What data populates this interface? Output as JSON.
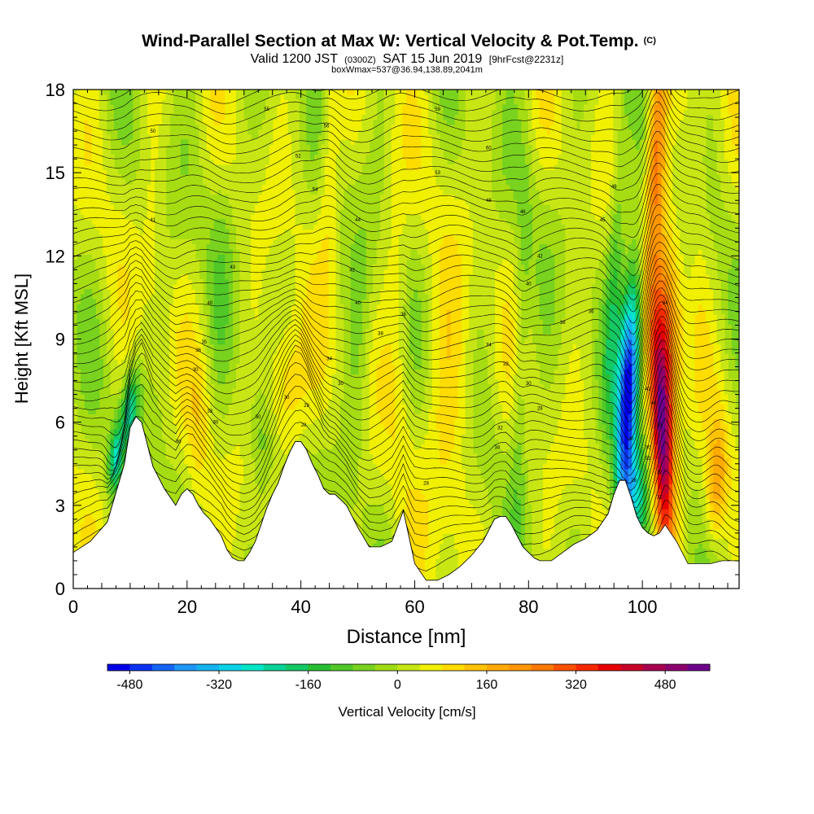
{
  "chart_data": {
    "type": "heatmap",
    "title": "Wind-Parallel Section at Max W: Vertical Velocity & Pot.Temp.",
    "title_mark": "(C)",
    "subtitle": {
      "prefix": "Valid 1200 JST",
      "utc": "(0300Z)",
      "date": "SAT 15 Jun 2019",
      "forecast": "[9hrFcst@2231z]"
    },
    "box_info": "boxWmax=537@36.94,138.89,2041m",
    "xlabel": "Distance [nm]",
    "ylabel": "Height [Kft MSL]",
    "xlim": [
      0,
      117
    ],
    "ylim": [
      0,
      18
    ],
    "x_ticks": [
      0,
      20,
      40,
      60,
      80,
      100
    ],
    "y_ticks": [
      0,
      3,
      6,
      9,
      12,
      15,
      18
    ],
    "grid": false,
    "colorbar": {
      "label": "Vertical Velocity [cm/s]",
      "range": [
        -520,
        560
      ],
      "tick_values": [
        -480,
        -320,
        -160,
        0,
        160,
        320,
        480
      ],
      "tick_labels": [
        "-480",
        "-320",
        "-160",
        "0",
        "160",
        "320",
        "480"
      ],
      "colors": [
        "#0000e6",
        "#0a32f0",
        "#1464f5",
        "#1e96fa",
        "#14b4f0",
        "#0ad2e6",
        "#00e6c8",
        "#0ad296",
        "#14c864",
        "#28be32",
        "#50c828",
        "#78d21e",
        "#a0dc14",
        "#c8e614",
        "#f0f000",
        "#ffdc00",
        "#ffc300",
        "#ffaa00",
        "#ff9600",
        "#ff7800",
        "#ff5000",
        "#f52800",
        "#e60000",
        "#c80028",
        "#aa0050",
        "#8c006e",
        "#6e008c"
      ]
    },
    "terrain": {
      "x": [
        0,
        3,
        6,
        9,
        10,
        11,
        12,
        13,
        14,
        15,
        16,
        17,
        18,
        19,
        20,
        21,
        22,
        23,
        24,
        25,
        26,
        27,
        28,
        29,
        30,
        31,
        32,
        33,
        34,
        35,
        36,
        37,
        38,
        39,
        40,
        41,
        42,
        43,
        44,
        45,
        46,
        47,
        48,
        49,
        50,
        52,
        54,
        56,
        58,
        60,
        62,
        64,
        66,
        68,
        70,
        72,
        74,
        75,
        76,
        77,
        78,
        79,
        80,
        81,
        82,
        84,
        86,
        88,
        90,
        92,
        94,
        95,
        96,
        97,
        98,
        99,
        100,
        101,
        102,
        103,
        104,
        105,
        106,
        107,
        108,
        110,
        112,
        114,
        116,
        117
      ],
      "y": [
        1.3,
        1.7,
        2.4,
        4.5,
        5.8,
        6.2,
        6.0,
        5.2,
        4.4,
        4.0,
        3.6,
        3.3,
        3.0,
        3.4,
        3.6,
        3.4,
        3.0,
        2.7,
        2.5,
        2.2,
        1.9,
        1.4,
        1.1,
        1.0,
        1.0,
        1.3,
        1.7,
        2.3,
        2.9,
        3.4,
        3.8,
        4.4,
        4.9,
        5.3,
        5.3,
        5.0,
        4.5,
        4.1,
        3.6,
        3.4,
        3.4,
        3.2,
        3.0,
        2.6,
        2.2,
        1.5,
        1.5,
        1.7,
        2.8,
        0.9,
        0.3,
        0.3,
        0.5,
        0.8,
        1.2,
        1.7,
        2.5,
        2.6,
        2.6,
        2.3,
        1.9,
        1.5,
        1.3,
        1.1,
        1.0,
        1.0,
        1.3,
        1.6,
        1.8,
        2.1,
        2.7,
        3.4,
        3.9,
        3.9,
        3.3,
        2.6,
        2.2,
        2.0,
        1.9,
        2.0,
        2.3,
        2.0,
        1.7,
        1.3,
        0.9,
        0.9,
        0.9,
        1.0,
        1.0,
        1.0
      ]
    },
    "velocity_features": [
      {
        "x": 97.5,
        "y": 7.2,
        "sx": 1.3,
        "sy": 3.0,
        "tilt": 0.23,
        "w": -520
      },
      {
        "x": 98.5,
        "y": 3.2,
        "sx": 1.8,
        "sy": 1.4,
        "tilt": 0.1,
        "w": -220
      },
      {
        "x": 103.5,
        "y": 5.6,
        "sx": 1.4,
        "sy": 3.2,
        "tilt": -0.15,
        "w": 540
      },
      {
        "x": 102.5,
        "y": 16.0,
        "sx": 1.2,
        "sy": 2.8,
        "tilt": 0.12,
        "w": 270
      },
      {
        "x": 105.0,
        "y": 9.8,
        "sx": 1.6,
        "sy": 2.5,
        "tilt": -0.05,
        "w": 160
      },
      {
        "x": 113.0,
        "y": 3.8,
        "sx": 1.3,
        "sy": 1.6,
        "tilt": 0.2,
        "w": 170
      },
      {
        "x": 10.0,
        "y": 6.5,
        "sx": 1.1,
        "sy": 1.0,
        "tilt": 0.3,
        "w": -230
      },
      {
        "x": 7.5,
        "y": 4.7,
        "sx": 0.9,
        "sy": 0.9,
        "tilt": 0.3,
        "w": -240
      },
      {
        "x": 37.5,
        "y": 7.3,
        "sx": 2.5,
        "sy": 1.8,
        "tilt": 0.0,
        "w": 150
      },
      {
        "x": 33.0,
        "y": 5.5,
        "sx": 1.5,
        "sy": 1.5,
        "tilt": -0.2,
        "w": -80
      },
      {
        "x": 22.0,
        "y": 5.5,
        "sx": 1.4,
        "sy": 2.4,
        "tilt": 0.1,
        "w": 60
      },
      {
        "x": 45.0,
        "y": 15.5,
        "sx": 1.2,
        "sy": 3.0,
        "tilt": 0.1,
        "w": 90
      },
      {
        "x": 66.0,
        "y": 6.5,
        "sx": 3.0,
        "sy": 3.5,
        "tilt": 0.0,
        "w": 90
      },
      {
        "x": 78.5,
        "y": 7.5,
        "sx": 1.0,
        "sy": 5.0,
        "tilt": 0.12,
        "w": -80
      },
      {
        "x": 95.0,
        "y": 11.0,
        "sx": 1.0,
        "sy": 4.0,
        "tilt": 0.25,
        "w": -120
      },
      {
        "x": 110.0,
        "y": 14.0,
        "sx": 1.3,
        "sy": 4.0,
        "tilt": 0.1,
        "w": 40
      },
      {
        "x": 50.0,
        "y": 8.0,
        "sx": 1.5,
        "sy": 3.5,
        "tilt": 0.2,
        "w": -50
      },
      {
        "x": 57.0,
        "y": 10.0,
        "sx": 1.6,
        "sy": 4.0,
        "tilt": -0.1,
        "w": 60
      },
      {
        "x": 26.0,
        "y": 12.0,
        "sx": 1.5,
        "sy": 4.0,
        "tilt": 0.1,
        "w": -40
      },
      {
        "x": 14.0,
        "y": 12.0,
        "sx": 1.3,
        "sy": 4.0,
        "tilt": 0.0,
        "w": 40
      }
    ],
    "theta_labels": [
      {
        "x": 34,
        "y": 17.3,
        "text": "55"
      },
      {
        "x": 14,
        "y": 16.5,
        "text": "50"
      },
      {
        "x": 44.5,
        "y": 16.7,
        "text": "56"
      },
      {
        "x": 64,
        "y": 17.3,
        "text": "59"
      },
      {
        "x": 73,
        "y": 15.9,
        "text": "60"
      },
      {
        "x": 39.5,
        "y": 15.6,
        "text": "52"
      },
      {
        "x": 64,
        "y": 15.0,
        "text": "53"
      },
      {
        "x": 42.5,
        "y": 14.4,
        "text": "54"
      },
      {
        "x": 73,
        "y": 14.0,
        "text": "48"
      },
      {
        "x": 95,
        "y": 14.5,
        "text": "49"
      },
      {
        "x": 14,
        "y": 13.3,
        "text": "41"
      },
      {
        "x": 50,
        "y": 13.3,
        "text": "44"
      },
      {
        "x": 79,
        "y": 13.6,
        "text": "46"
      },
      {
        "x": 93,
        "y": 13.3,
        "text": "45"
      },
      {
        "x": 28,
        "y": 11.6,
        "text": "43"
      },
      {
        "x": 49,
        "y": 11.5,
        "text": "42"
      },
      {
        "x": 82,
        "y": 12.0,
        "text": "42"
      },
      {
        "x": 24,
        "y": 10.3,
        "text": "40"
      },
      {
        "x": 50,
        "y": 10.3,
        "text": "40"
      },
      {
        "x": 80,
        "y": 11.0,
        "text": "40"
      },
      {
        "x": 104,
        "y": 10.3,
        "text": "34"
      },
      {
        "x": 58,
        "y": 9.9,
        "text": "36"
      },
      {
        "x": 91,
        "y": 10.0,
        "text": "36"
      },
      {
        "x": 86,
        "y": 9.6,
        "text": "38"
      },
      {
        "x": 54,
        "y": 9.2,
        "text": "38"
      },
      {
        "x": 22,
        "y": 8.6,
        "text": "36"
      },
      {
        "x": 23,
        "y": 8.9,
        "text": "35"
      },
      {
        "x": 73,
        "y": 8.8,
        "text": "34"
      },
      {
        "x": 45,
        "y": 8.3,
        "text": "34"
      },
      {
        "x": 21.5,
        "y": 7.9,
        "text": "30"
      },
      {
        "x": 76,
        "y": 8.1,
        "text": "32"
      },
      {
        "x": 80,
        "y": 7.4,
        "text": "30"
      },
      {
        "x": 47,
        "y": 7.4,
        "text": "30"
      },
      {
        "x": 32.5,
        "y": 6.2,
        "text": "50"
      },
      {
        "x": 24,
        "y": 6.4,
        "text": "33"
      },
      {
        "x": 37.5,
        "y": 6.9,
        "text": "30"
      },
      {
        "x": 41,
        "y": 6.6,
        "text": "28"
      },
      {
        "x": 82,
        "y": 6.5,
        "text": "28"
      },
      {
        "x": 101,
        "y": 7.2,
        "text": "42"
      },
      {
        "x": 102,
        "y": 6.7,
        "text": "40"
      },
      {
        "x": 25,
        "y": 6.0,
        "text": "30"
      },
      {
        "x": 40.5,
        "y": 5.9,
        "text": "28"
      },
      {
        "x": 75,
        "y": 5.8,
        "text": "32"
      },
      {
        "x": 103,
        "y": 5.9,
        "text": "35"
      },
      {
        "x": 18.5,
        "y": 5.3,
        "text": "30"
      },
      {
        "x": 74.5,
        "y": 5.1,
        "text": "34"
      },
      {
        "x": 98,
        "y": 5.4,
        "text": "30"
      },
      {
        "x": 101,
        "y": 5.1,
        "text": "30"
      },
      {
        "x": 101,
        "y": 4.7,
        "text": "31"
      },
      {
        "x": 103,
        "y": 4.2,
        "text": "32"
      },
      {
        "x": 98.5,
        "y": 3.9,
        "text": "28"
      },
      {
        "x": 103,
        "y": 3.3,
        "text": "31"
      },
      {
        "x": 62,
        "y": 3.8,
        "text": "28"
      }
    ]
  }
}
